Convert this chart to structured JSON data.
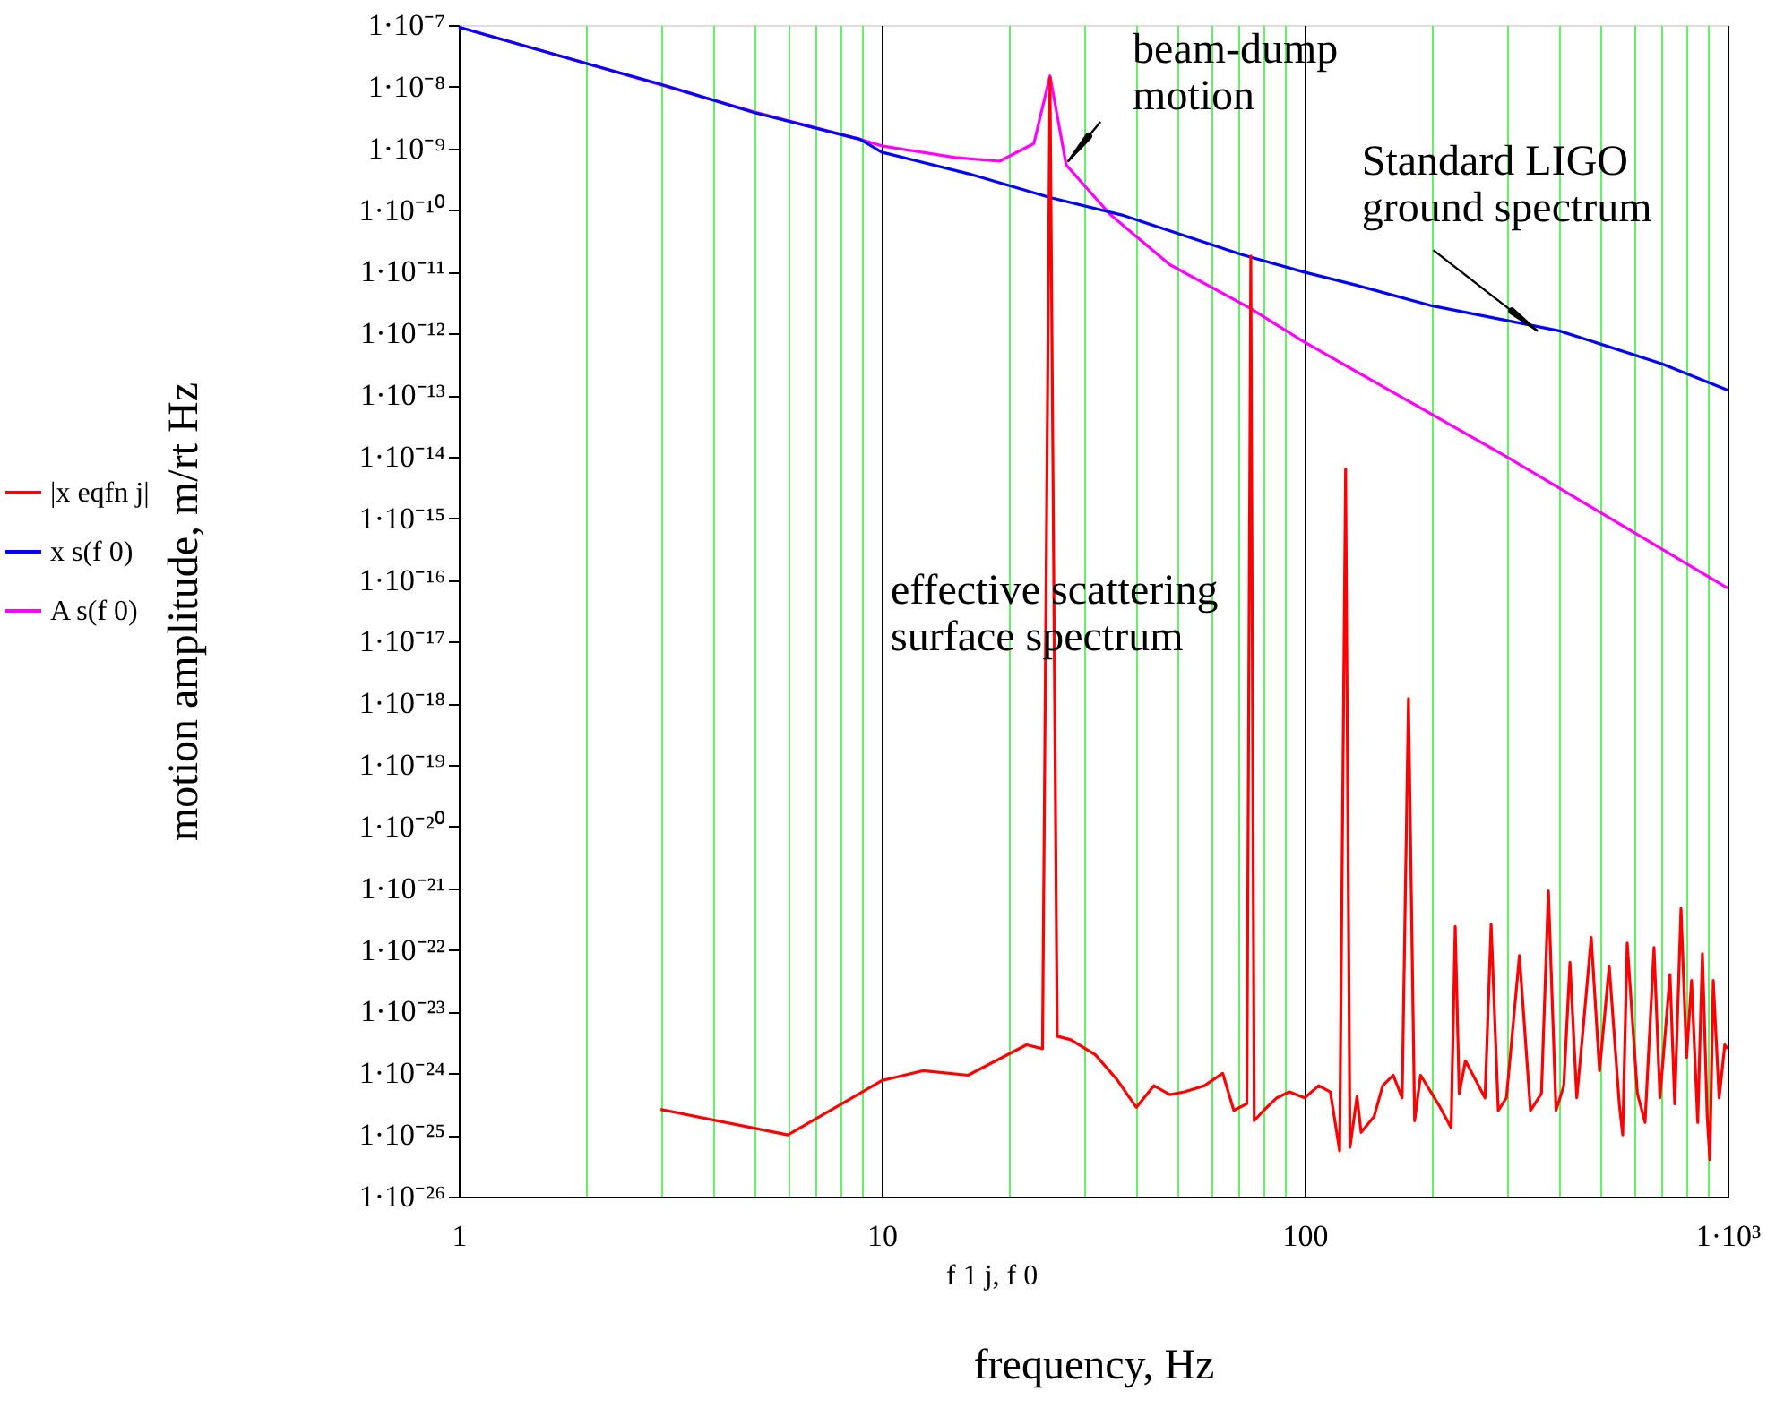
{
  "chart_data": {
    "type": "line",
    "xlabel": "frequency, Hz",
    "ylabel": "motion amplitude, m/rt Hz",
    "log": "xy",
    "grid": "x",
    "legend": "left",
    "marker": "none",
    "line_style": "solid",
    "xlim": [
      1,
      1000
    ],
    "ylim": [
      1e-26,
      1e-07
    ],
    "xticks": [
      1,
      {
        "value": 2,
        "label": null
      },
      {
        "value": 3,
        "label": null
      },
      {
        "value": 4,
        "label": null
      },
      {
        "value": 5,
        "label": null
      },
      {
        "value": 6,
        "label": null
      },
      {
        "value": 7,
        "label": null
      },
      {
        "value": 8,
        "label": null
      },
      {
        "value": 9,
        "label": null
      },
      10,
      {
        "value": 20,
        "label": null
      },
      {
        "value": 30,
        "label": null
      },
      {
        "value": 40,
        "label": null
      },
      {
        "value": 50,
        "label": null
      },
      {
        "value": 60,
        "label": null
      },
      {
        "value": 70,
        "label": null
      },
      {
        "value": 80,
        "label": null
      },
      {
        "value": 90,
        "label": null
      },
      100,
      {
        "value": 200,
        "label": null
      },
      {
        "value": 300,
        "label": null
      },
      {
        "value": 400,
        "label": null
      },
      {
        "value": 500,
        "label": null
      },
      {
        "value": 600,
        "label": null
      },
      {
        "value": 700,
        "label": null
      },
      {
        "value": 800,
        "label": null
      },
      {
        "value": 900,
        "label": null
      },
      {
        "value": 1000,
        "label": "1·10³"
      }
    ],
    "yticks": [
      {
        "value": 1e-26,
        "label": "1·10⁻²⁶"
      },
      {
        "value": 1e-25,
        "label": "1·10⁻²⁵"
      },
      {
        "value": 1e-24,
        "label": "1·10⁻²⁴"
      },
      {
        "value": 1e-23,
        "label": "1·10⁻²³"
      },
      {
        "value": 1e-22,
        "label": "1·10⁻²²"
      },
      {
        "value": 1e-21,
        "label": "1·10⁻²¹"
      },
      {
        "value": 1e-20,
        "label": "1·10⁻²⁰"
      },
      {
        "value": 1e-19,
        "label": "1·10⁻¹⁹"
      },
      {
        "value": 1e-18,
        "label": "1·10⁻¹⁸"
      },
      {
        "value": 1e-17,
        "label": "1·10⁻¹⁷"
      },
      {
        "value": 1e-16,
        "label": "1·10⁻¹⁶"
      },
      {
        "value": 1e-15,
        "label": "1·10⁻¹⁵"
      },
      {
        "value": 1e-14,
        "label": "1·10⁻¹⁴"
      },
      {
        "value": 1e-13,
        "label": "1·10⁻¹³"
      },
      {
        "value": 1e-12,
        "label": "1·10⁻¹²"
      },
      {
        "value": 1e-11,
        "label": "1·10⁻¹¹"
      },
      {
        "value": 1e-10,
        "label": "1·10⁻¹⁰"
      },
      {
        "value": 1e-09,
        "label": "1·10⁻⁹"
      },
      {
        "value": 1e-08,
        "label": "1·10⁻⁸"
      },
      {
        "value": 1e-07,
        "label": "1·10⁻⁷"
      }
    ],
    "annotations": [
      "effective scattering\nsurface spectrum",
      {
        "text": "beam-dump\nmotion",
        "x": 27.6,
        "y": 6.2e-10
      },
      {
        "text": "Standard LIGO\nground spectrum",
        "x": 355,
        "y": 1.1e-12
      },
      "f 1 j, f 0"
    ],
    "series": [
      {
        "name": "|x eqfn j|",
        "color": "#ff0000",
        "x": [
          3,
          6,
          10,
          12.5,
          16,
          22,
          24,
          25,
          26,
          28,
          32,
          36,
          40,
          44,
          48,
          52,
          58,
          64,
          68,
          73,
          74.6,
          76,
          80,
          86,
          92,
          100,
          108,
          115,
          121,
          125,
          128,
          133,
          136,
          146,
          153,
          162,
          170,
          176,
          182,
          188,
          208,
          222,
          227,
          232,
          240,
          267,
          276,
          287,
          300,
          322,
          342,
          363,
          377,
          393,
          410,
          424,
          440,
          453,
          476,
          498,
          525,
          555,
          565,
          579,
          612,
          638,
          670,
          692,
          731,
          750,
          776,
          800,
          822,
          850,
          872,
          895,
          908,
          925,
          955,
          985,
          1000
        ],
        "values": [
          2.6e-25,
          1e-25,
          7.6e-25,
          1.1e-24,
          9.3e-25,
          2.9e-24,
          2.5e-24,
          1.4e-08,
          4e-24,
          3.5e-24,
          2e-24,
          7.9e-25,
          2.8e-25,
          6.3e-25,
          4.5e-25,
          5e-25,
          6.3e-25,
          1e-24,
          2.5e-25,
          3.2e-25,
          1.8e-11,
          1.7e-25,
          2.5e-25,
          4e-25,
          5e-25,
          4e-25,
          6.3e-25,
          5e-25,
          5.5e-26,
          6.3e-15,
          6.3e-26,
          4.2e-25,
          1.1e-25,
          2e-25,
          6.3e-25,
          9.3e-25,
          4e-25,
          1.2e-18,
          1.7e-25,
          9.3e-25,
          3e-25,
          1.3e-25,
          2.4e-22,
          4.7e-25,
          1.6e-24,
          4e-25,
          2.6e-22,
          2.5e-25,
          4e-25,
          8.1e-23,
          2.5e-25,
          4.7e-25,
          9.1e-22,
          2.5e-25,
          6.3e-25,
          6.3e-23,
          4e-25,
          3.5e-24,
          1.6e-22,
          1.1e-24,
          5.5e-23,
          3e-25,
          1e-25,
          1.3e-22,
          4.7e-25,
          1.6e-25,
          1.1e-22,
          4e-25,
          4e-23,
          3.2e-25,
          4.7e-22,
          1.8e-24,
          3.2e-23,
          1.6e-25,
          8.7e-23,
          2e-25,
          4e-26,
          3.2e-23,
          4e-25,
          2.9e-24,
          2.5e-24
        ]
      },
      {
        "name": "x s(f 0)",
        "color": "#0000ff",
        "x": [
          1,
          2,
          3,
          5,
          8.9,
          10,
          16,
          25,
          37,
          71,
          99,
          133,
          200,
          400,
          700,
          1000
        ],
        "values": [
          9.3e-08,
          2.4e-08,
          1.1e-08,
          3.8e-09,
          1.4e-09,
          8.7e-10,
          3.9e-10,
          1.6e-10,
          8.3e-11,
          1.9e-11,
          1e-11,
          6e-12,
          2.8e-12,
          1.1e-12,
          3.2e-13,
          1.2e-13
        ]
      },
      {
        "name": "A s(f 0)",
        "color": "#ff00ff",
        "x": [
          1,
          2,
          5,
          8.9,
          10,
          14.9,
          19,
          22.9,
          25,
          27.3,
          30,
          34.8,
          48,
          74,
          98.6,
          300,
          1000
        ],
        "values": [
          9.3e-08,
          2.4e-08,
          3.9e-09,
          1.4e-09,
          1.1e-09,
          7.1e-10,
          6.2e-10,
          1.2e-09,
          1.5e-08,
          5.4e-10,
          2.6e-10,
          8.3e-11,
          1.3e-11,
          2.6e-12,
          7.6e-13,
          1e-14,
          7.4e-17
        ]
      }
    ]
  }
}
